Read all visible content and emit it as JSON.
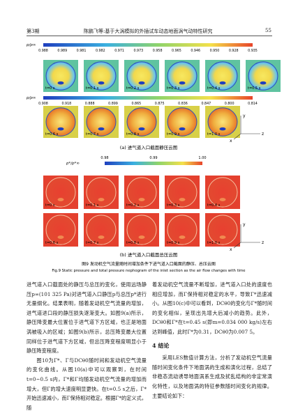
{
  "header": {
    "issue": "第3期",
    "running_title": "陈鹏飞等:基于大涡模拟的外插试车动态地面涡气动特性研究",
    "page_number": "55"
  },
  "figure_a": {
    "legend_label": "p/p∞",
    "rows": [
      {
        "ticks": [
          "0.988",
          "0.989",
          "0.981",
          "0.982",
          "0.971",
          "0.973",
          "0.958",
          "0.965",
          "0.946",
          "0.950",
          "0.928",
          "0.935"
        ],
        "panels": [
          "t=0 s",
          "t=0.1 s",
          "t=0.2 s",
          "t=0.3 s",
          "t=0.4 s",
          "t=0.5 s"
        ]
      },
      {
        "ticks": [
          "0.908",
          "0.918",
          "0.888",
          "0.899",
          "0.865",
          "0.875",
          "0.836",
          "0.847",
          "0.800",
          "0.814"
        ],
        "panels": [
          "t=0.6 s",
          "t=0.7 s",
          "t=0.8 s",
          "t=0.9 s",
          "t=1.0 s"
        ]
      }
    ],
    "axes": [
      "y",
      "z",
      "x"
    ],
    "caption": "(a) 进气道入口截面静压云图"
  },
  "figure_b": {
    "legend_label": "p*/p*∞",
    "ticks": [
      "0.98",
      "0.99",
      "1.00"
    ],
    "rows": [
      {
        "panels": [
          "t=0 s",
          "t=0.1 s",
          "t=0.2 s",
          "t=0.3 s",
          "t=0.4 s"
        ]
      },
      {
        "panels": [
          "t=0.6 s",
          "t=0.7 s",
          "t=0.8 s",
          "t=0.9 s",
          "t=1.0 s"
        ]
      }
    ],
    "axes": [
      "y",
      "z",
      "x"
    ],
    "caption": "(b) 进气道入口截面总压云图"
  },
  "figure_caption_cn": "图9 发动机空气流量随时间增加条件下进气道入口截面的静压、总压云图",
  "figure_caption_en": "Fig.9 Static pressure and total pressure nephogram of the inlet section as the air flow changes with time",
  "body": {
    "left": [
      "进气道入口截面处的静压与总压的变化，使用远场静压p∞(101 325 Pa)对进气道入口静压p与总压p*进行无量纲化。结果表明，随着发动机空气流量的增加，进气道进口段的静压损失逐渐变大。如图9(a)所示，静压降变最大位置位于进气道下方区域，也正是地面涡被吸入的区域；如图9(b)所示，总压降变最大位置同样位于进气道下方区域，但总压降变程度明显小于静压降变程度。",
      "图10为Γ*、Γ与DCθ0随时间和发动机空气流量的变化曲线。从图10(a)中可以观察到，在时间t=0~0.5 s内，Γ*和Γ均随发动机空气流量的增加而增大，但Γ的增大速度明显更快。在t=0.5 s之后，Γ*开始迅速减小，而Γ保持相对稳定。根据Γ*的定义式，随"
    ],
    "right": [
      "着发动机空气流量不断增加，进气道入口处的速度也相应增加，而Γ保持相对稳定的水平，导致Γ*迅速减小。从图10(c)中可以看到，DCθ0的变化与Γ*随时间的变化相似，呈现出先增大后减小的趋势。此外，DCθ0和Γ*在t=0.45 s(即m=0.034 000 kg/s)左右达到峰值，此时Γ*为0.31，DCθ0为0.007 5。"
    ],
    "section_heading": "4 结论",
    "section_text": "采用LES数值计算方法，分析了发动机空气流量随时间变化条件下地面涡的生成和演化过程，总结了非稳态流动诱导地面涡系生成及扰乱结构的非定常演化特性，以及地面涡的特征参数随时间变化的规律。主要结论如下："
  }
}
